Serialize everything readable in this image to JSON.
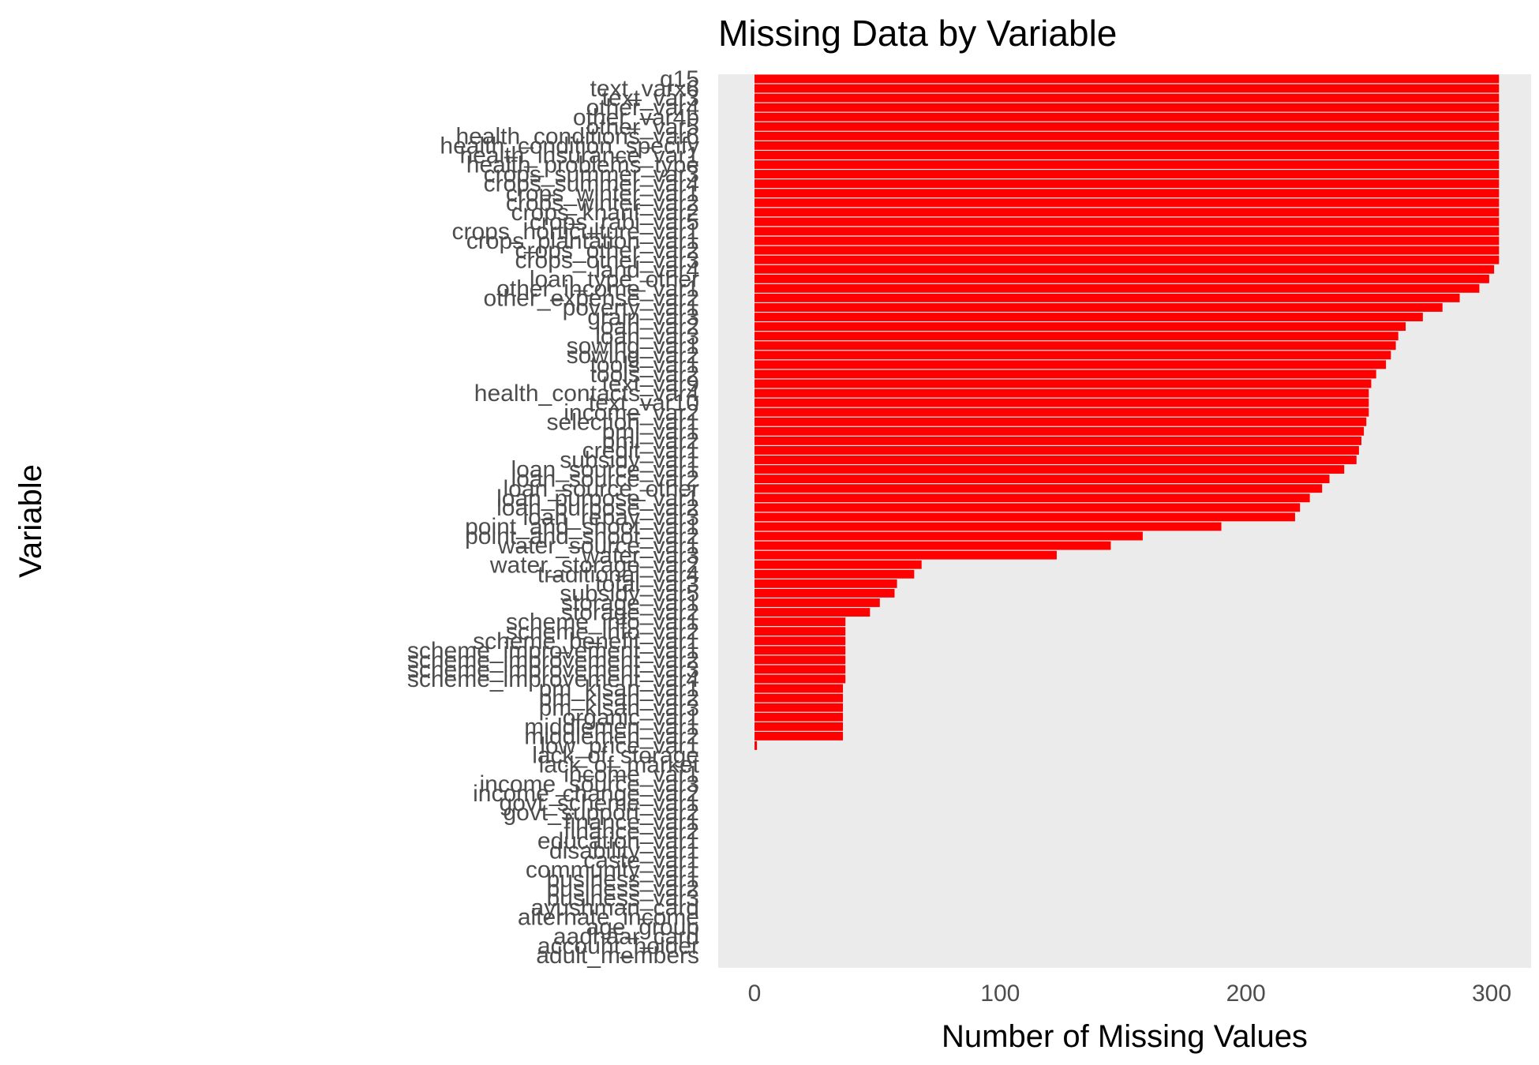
{
  "chart_data": {
    "type": "bar",
    "orientation": "horizontal",
    "title": "Missing Data by Variable",
    "xlabel": "Number of Missing Values",
    "ylabel": "Variable",
    "xlim": [
      0,
      312
    ],
    "x_ticks": [
      "0",
      "100",
      "200",
      "300"
    ],
    "grid": false,
    "legend": "none",
    "bar_color": "#ff0000",
    "panel_color": "#ebebeb",
    "categories": [
      "q15",
      "text_varx6",
      "text_var3",
      "other_var4",
      "other_var4b",
      "other_var5",
      "health_conditions_var6",
      "health_condition_specify",
      "health_insurance_var1",
      "health_problems_type",
      "crops_summer_var3",
      "crops_summer_var4",
      "crops_winter_var1",
      "crops_winter_var2",
      "crops_kharif_var2",
      "crops_rabi_var5",
      "crops_horticulture_var1",
      "crops_plantation_var1",
      "crops_other_var2",
      "crops_other_var3",
      "land_var4",
      "loan_type_other",
      "other_income_var1",
      "other_expense_var2",
      "poverty_var1",
      "grain_var3",
      "loan_var2",
      "loan_var3",
      "sowing_var1",
      "sowing_var2",
      "tools_var1",
      "tools_var2",
      "text_var9",
      "health_contacts_var4",
      "text_var10",
      "income_var2",
      "selection_var1",
      "pmi_var1",
      "pmi_var2",
      "credit_var1",
      "subsidy_var1",
      "loan_source_var1",
      "loan_source_var2",
      "loan_source_other",
      "loan_purpose_var1",
      "loan_purpose_var2",
      "loan_repay_var3",
      "point_and_shoot_var1",
      "point_and_shoot_var2",
      "water_source_var1",
      "water_var3",
      "water_storage_var2",
      "traditional_var4",
      "total_var3",
      "subsidy_var5",
      "storage_var1",
      "storage_var2",
      "scheme_info_var1",
      "scheme_info_var2",
      "scheme_benefit_var1",
      "scheme_improvement_var1",
      "scheme_improvement_var2",
      "scheme_improvement_var3",
      "scheme_improvement_var4",
      "pm_kisan_var1",
      "pm_kisan_var2",
      "pm_kisan_var3",
      "organic_var1",
      "middlemen_var1",
      "middlemen_var2",
      "low_price_var1",
      "lack_of_storage",
      "lack_of_market",
      "income_var1",
      "income_source_var3",
      "income_change_var2",
      "govt_scheme_var1",
      "govt_support_var2",
      "finance_var1",
      "finance_var2",
      "education_var1",
      "disability_var1",
      "caste_var1",
      "community_var1",
      "business_var1",
      "business_var2",
      "business_var3",
      "ayushman_card",
      "alternate_income",
      "age_group",
      "aadhaar_card",
      "account_holder",
      "adult_members"
    ],
    "values": [
      303,
      303,
      303,
      303,
      303,
      303,
      303,
      303,
      303,
      303,
      303,
      303,
      303,
      303,
      303,
      303,
      303,
      303,
      303,
      303,
      301,
      299,
      295,
      287,
      280,
      272,
      265,
      262,
      261,
      259,
      257,
      253,
      251,
      250,
      250,
      250,
      249,
      248,
      247,
      246,
      245,
      240,
      234,
      231,
      226,
      222,
      220,
      190,
      158,
      145,
      123,
      68,
      65,
      58,
      57,
      51,
      47,
      37,
      37,
      37,
      37,
      37,
      37,
      37,
      36,
      36,
      36,
      36,
      36,
      36,
      1,
      0,
      0,
      0,
      0,
      0,
      0,
      0,
      0,
      0,
      0,
      0,
      0,
      0,
      0,
      0,
      0,
      0,
      0,
      0,
      0,
      0,
      0
    ]
  }
}
